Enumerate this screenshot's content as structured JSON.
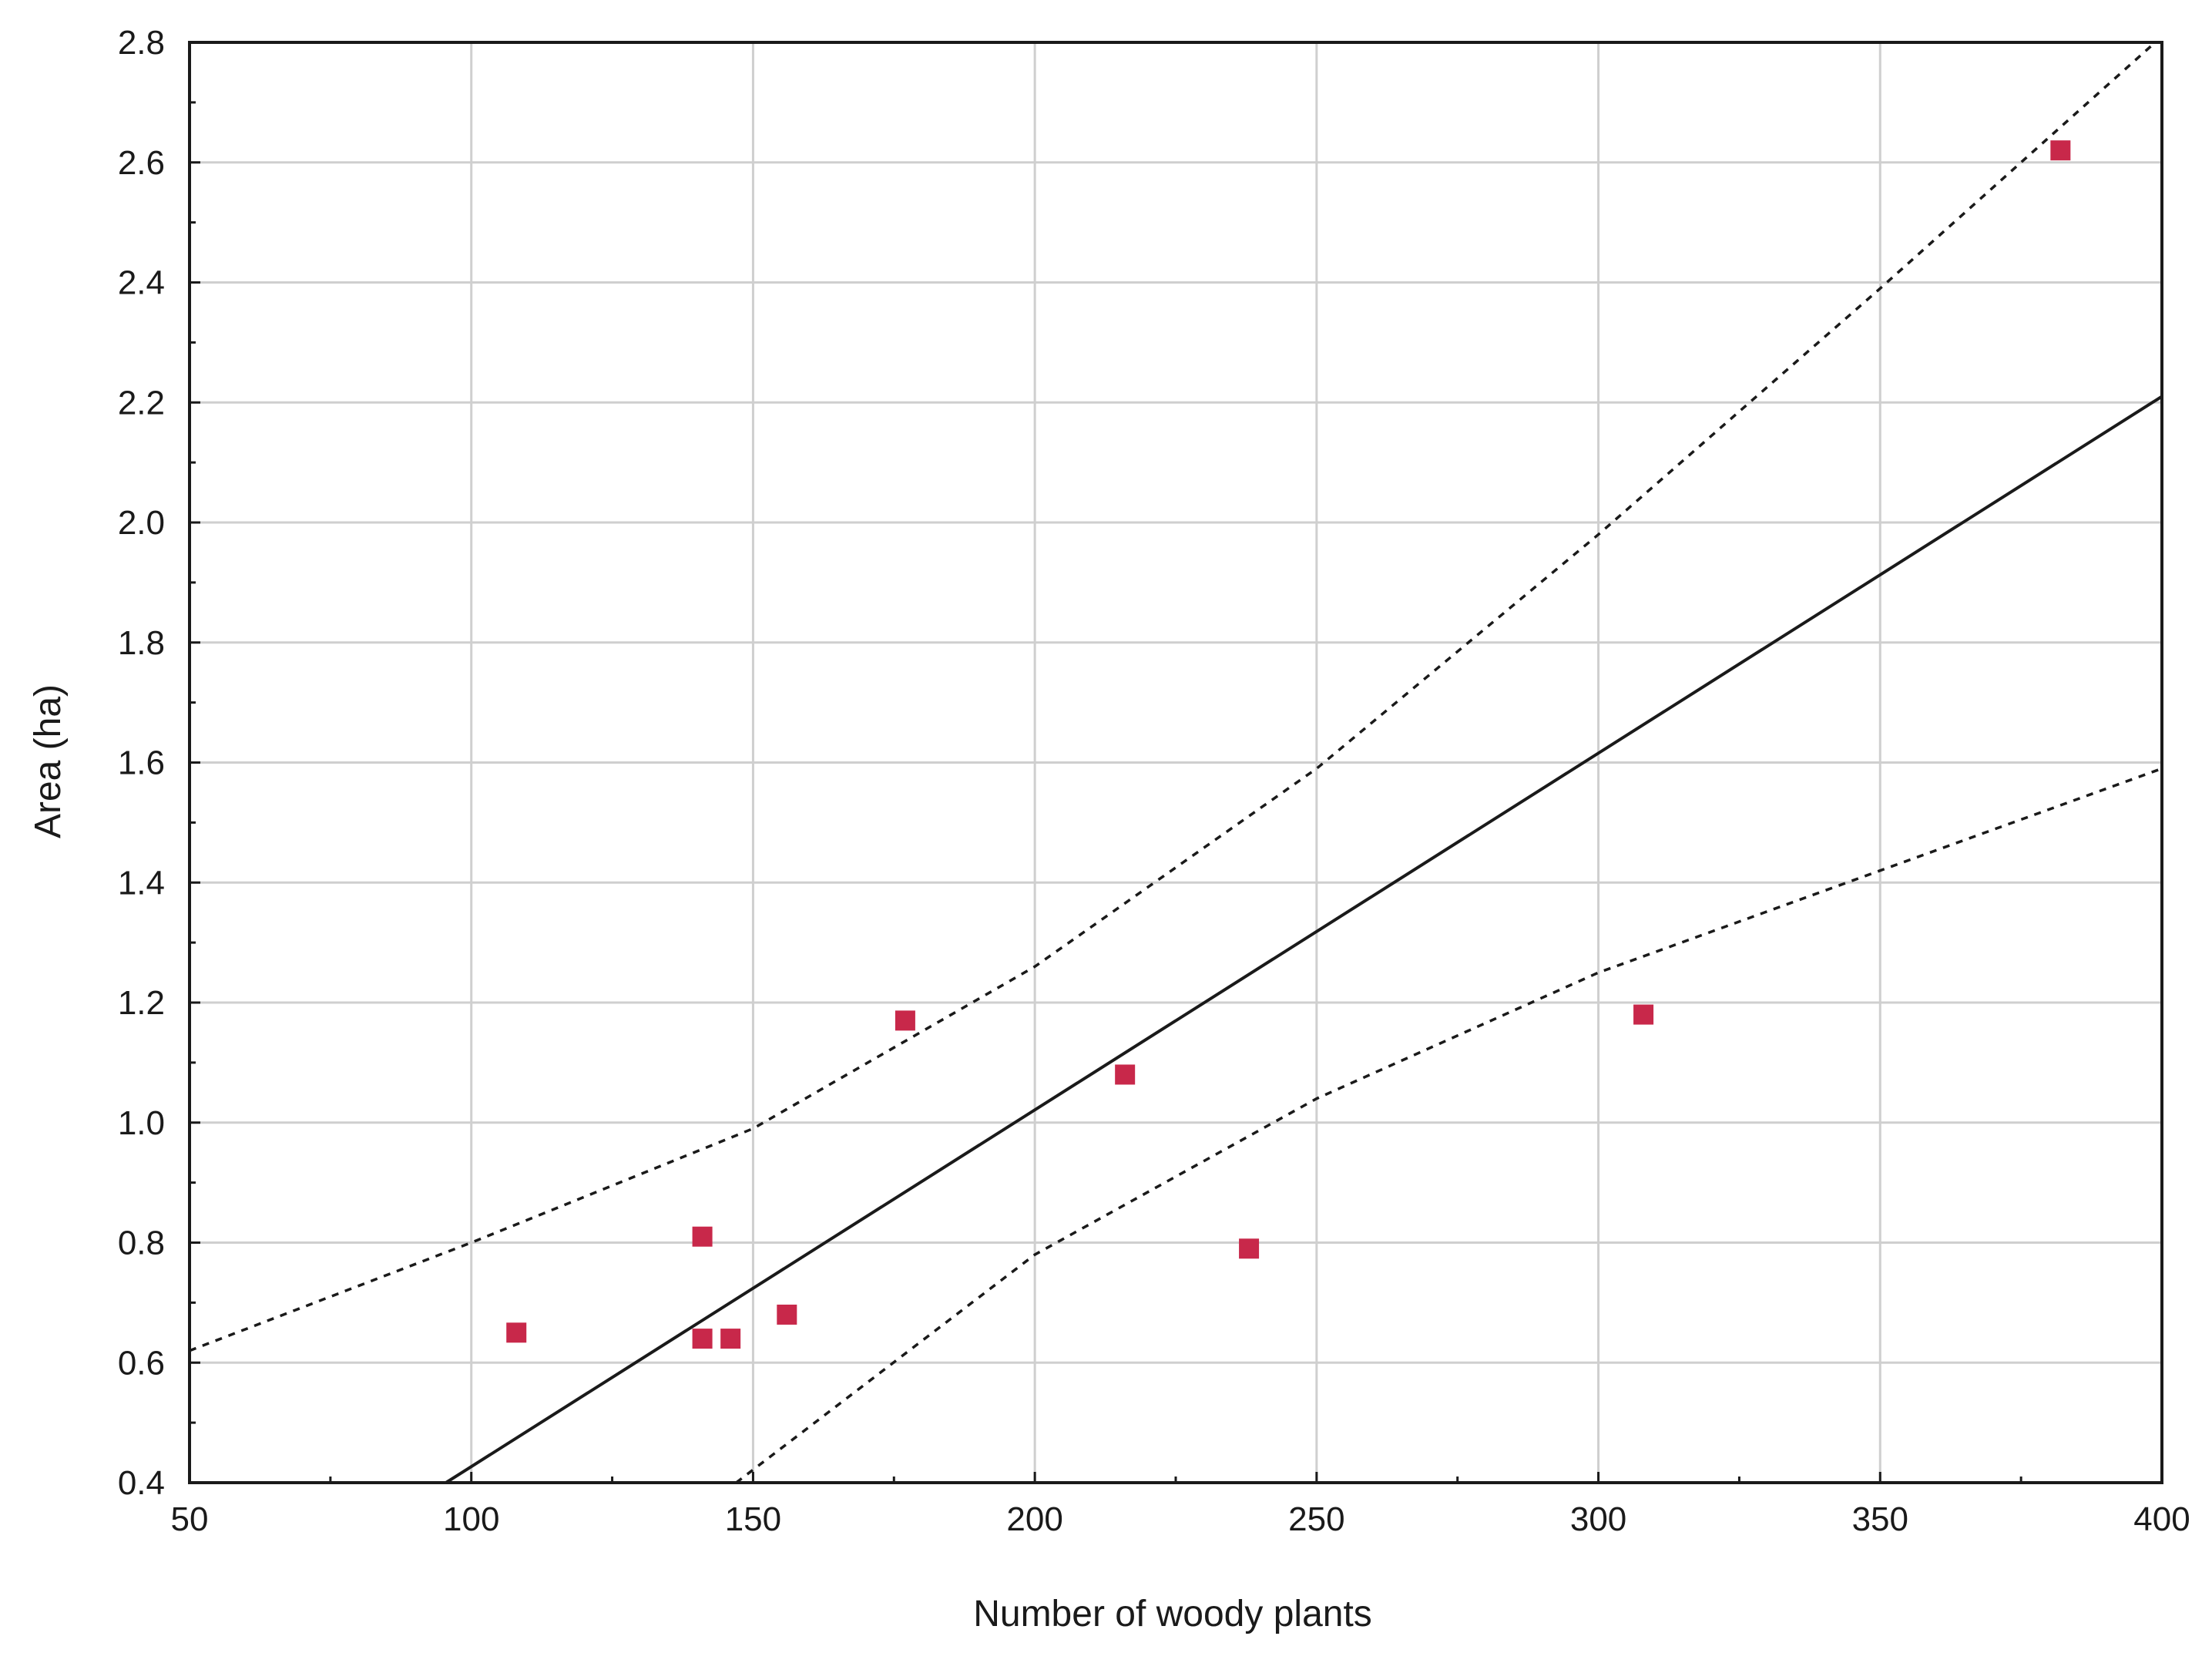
{
  "chart_data": {
    "type": "scatter",
    "title": "",
    "xlabel": "Number of woody plants",
    "ylabel": "Area (ha)",
    "xlim": [
      50,
      400
    ],
    "ylim": [
      0.4,
      2.8
    ],
    "xticks": [
      50,
      100,
      150,
      200,
      250,
      300,
      350,
      400
    ],
    "yticks": [
      0.4,
      0.6,
      0.8,
      1.0,
      1.2,
      1.4,
      1.6,
      1.8,
      2.0,
      2.2,
      2.4,
      2.6,
      2.8
    ],
    "ytick_labels": [
      "0.4",
      "0.6",
      "0.8",
      "1.0",
      "1.2",
      "1.4",
      "1.6",
      "1.8",
      "2.0",
      "2.2",
      "2.4",
      "2.6",
      "2.8"
    ],
    "grid": true,
    "points": [
      {
        "x": 108,
        "y": 0.65
      },
      {
        "x": 141,
        "y": 0.81
      },
      {
        "x": 141,
        "y": 0.64
      },
      {
        "x": 146,
        "y": 0.64
      },
      {
        "x": 156,
        "y": 0.68
      },
      {
        "x": 177,
        "y": 1.17
      },
      {
        "x": 216,
        "y": 1.08
      },
      {
        "x": 238,
        "y": 0.79
      },
      {
        "x": 308,
        "y": 1.18
      },
      {
        "x": 382,
        "y": 2.62
      }
    ],
    "regression_line": {
      "x": [
        95.5,
        400
      ],
      "y": [
        0.4,
        2.21
      ]
    },
    "confidence_upper": {
      "x": [
        50,
        100,
        150,
        200,
        250,
        300,
        350,
        400
      ],
      "y": [
        0.62,
        0.8,
        0.99,
        1.26,
        1.59,
        1.98,
        2.39,
        2.81
      ]
    },
    "confidence_lower": {
      "x": [
        147,
        200,
        250,
        300,
        350,
        400
      ],
      "y": [
        0.4,
        0.78,
        1.04,
        1.25,
        1.42,
        1.59
      ]
    },
    "colors": {
      "points": "#c8284a",
      "line": "#1a1a1a",
      "grid": "#cfcfcf",
      "axis": "#1a1a1a"
    }
  }
}
